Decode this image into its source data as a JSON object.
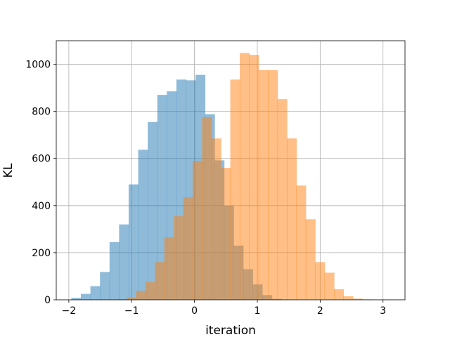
{
  "chart_data": {
    "type": "bar",
    "title": "",
    "xlabel": "iteration",
    "ylabel": "KL",
    "xlim": [
      -2.2,
      3.35
    ],
    "ylim": [
      0,
      1100
    ],
    "xticks": [
      -2,
      -1,
      0,
      1,
      2,
      3
    ],
    "yticks": [
      0,
      200,
      400,
      600,
      800,
      1000
    ],
    "grid": true,
    "legend": "none",
    "bin_width": 0.152,
    "series": [
      {
        "color": "#1f77b4",
        "opacity": 0.5,
        "bin_starts": [
          -1.96,
          -1.808,
          -1.656,
          -1.504,
          -1.352,
          -1.2,
          -1.048,
          -0.896,
          -0.744,
          -0.592,
          -0.44,
          -0.288,
          -0.136,
          0.016,
          0.168,
          0.32,
          0.472,
          0.624,
          0.776,
          0.928,
          1.08,
          1.232
        ],
        "values": [
          8,
          25,
          58,
          118,
          245,
          320,
          490,
          637,
          755,
          870,
          885,
          935,
          932,
          955,
          788,
          592,
          400,
          230,
          130,
          65,
          20,
          4
        ]
      },
      {
        "color": "#ff7f0e",
        "opacity": 0.5,
        "bin_starts": [
          -1.23,
          -1.08,
          -0.93,
          -0.78,
          -0.63,
          -0.48,
          -0.33,
          -0.18,
          -0.03,
          0.12,
          0.27,
          0.42,
          0.57,
          0.72,
          0.87,
          1.02,
          1.17,
          1.32,
          1.47,
          1.62,
          1.77,
          1.92,
          2.07,
          2.22,
          2.37,
          2.52,
          2.67,
          2.82,
          2.97
        ],
        "values": [
          3,
          10,
          38,
          75,
          160,
          265,
          355,
          435,
          590,
          775,
          685,
          560,
          935,
          1048,
          1040,
          975,
          975,
          852,
          685,
          485,
          342,
          160,
          115,
          45,
          15,
          5,
          2,
          1,
          1
        ]
      }
    ]
  }
}
